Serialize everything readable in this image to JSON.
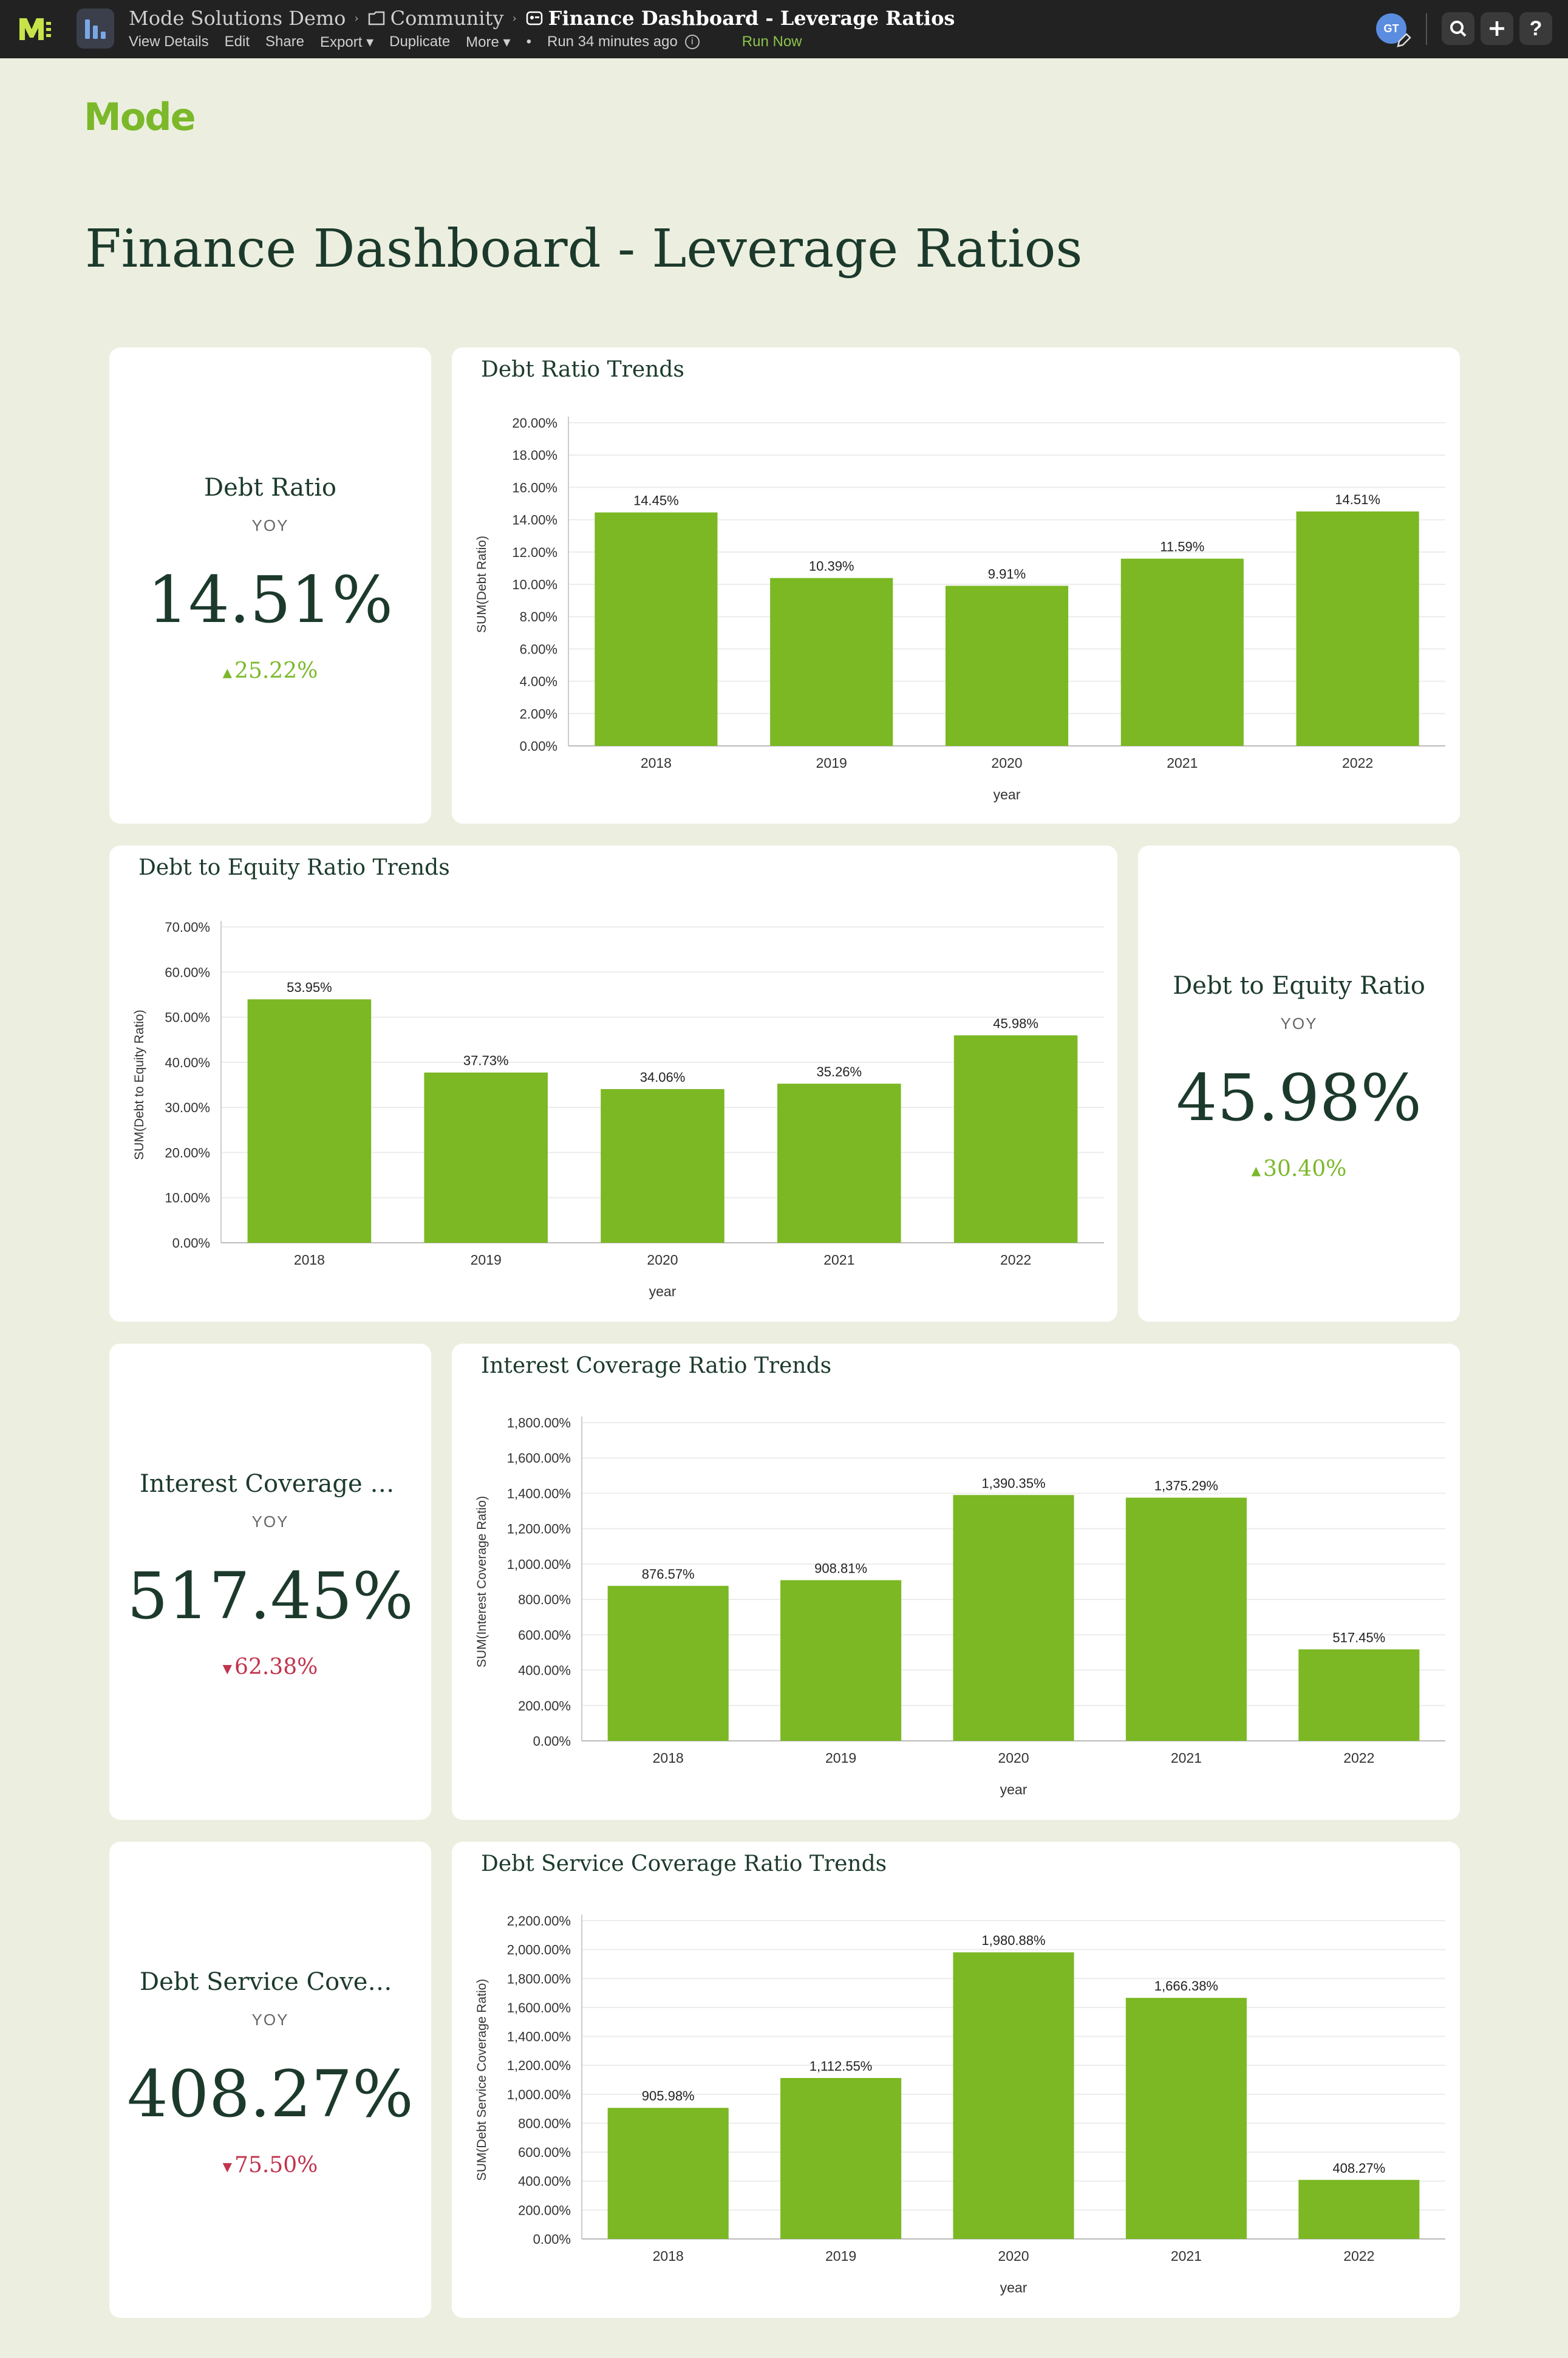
{
  "app": {
    "breadcrumbs": [
      "Mode Solutions Demo",
      "Community",
      "Finance Dashboard - Leverage Ratios"
    ],
    "actions": [
      "View Details",
      "Edit",
      "Share",
      "Export ▾",
      "Duplicate",
      "More ▾",
      "•",
      "Run 34 minutes ago"
    ],
    "run_now": "Run Now",
    "avatar_initials": "GT",
    "brand_logo": "Mode",
    "icons": [
      "mode-m-icon",
      "report-icon",
      "folder-icon",
      "report-small-icon",
      "info-icon",
      "search-icon",
      "plus-icon",
      "help-icon",
      "edit-pencil-icon"
    ]
  },
  "page": {
    "title": "Finance Dashboard - Leverage Ratios"
  },
  "kpis": [
    {
      "title": "Debt Ratio",
      "sub": "YOY",
      "value": "14.51%",
      "change": "25.22%",
      "direction": "up"
    },
    {
      "title": "Debt to Equity Ratio",
      "sub": "YOY",
      "value": "45.98%",
      "change": "30.40%",
      "direction": "up"
    },
    {
      "title": "Interest Coverage Ra...",
      "sub": "YOY",
      "value": "517.45%",
      "change": "62.38%",
      "direction": "down"
    },
    {
      "title": "Debt Service Covera...",
      "sub": "YOY",
      "value": "408.27%",
      "change": "75.50%",
      "direction": "down"
    }
  ],
  "colors": {
    "bar": "#7bb823",
    "up": "#7bb82a",
    "down": "#c0344d",
    "background": "#ecefdf"
  },
  "chart_data": [
    {
      "type": "bar",
      "title": "Debt Ratio Trends",
      "xlabel": "year",
      "ylabel": "SUM(Debt Ratio)",
      "categories": [
        "2018",
        "2019",
        "2020",
        "2021",
        "2022"
      ],
      "values": [
        14.45,
        10.39,
        9.91,
        11.59,
        14.51
      ],
      "labels": [
        "14.45%",
        "10.39%",
        "9.91%",
        "11.59%",
        "14.51%"
      ],
      "ylim": [
        0,
        20
      ],
      "ticks": [
        "0.00%",
        "2.00%",
        "4.00%",
        "6.00%",
        "8.00%",
        "10.00%",
        "12.00%",
        "14.00%",
        "16.00%",
        "18.00%",
        "20.00%"
      ],
      "grid": true
    },
    {
      "type": "bar",
      "title": "Debt to Equity Ratio Trends",
      "xlabel": "year",
      "ylabel": "SUM(Debt to Equity Ratio)",
      "categories": [
        "2018",
        "2019",
        "2020",
        "2021",
        "2022"
      ],
      "values": [
        53.95,
        37.73,
        34.06,
        35.26,
        45.98
      ],
      "labels": [
        "53.95%",
        "37.73%",
        "34.06%",
        "35.26%",
        "45.98%"
      ],
      "ylim": [
        0,
        70
      ],
      "ticks": [
        "0.00%",
        "10.00%",
        "20.00%",
        "30.00%",
        "40.00%",
        "50.00%",
        "60.00%",
        "70.00%"
      ],
      "grid": true
    },
    {
      "type": "bar",
      "title": "Interest Coverage Ratio Trends",
      "xlabel": "year",
      "ylabel": "SUM(Interest Coverage Ratio)",
      "categories": [
        "2018",
        "2019",
        "2020",
        "2021",
        "2022"
      ],
      "values": [
        876.57,
        908.81,
        1390.35,
        1375.29,
        517.45
      ],
      "labels": [
        "876.57%",
        "908.81%",
        "1,390.35%",
        "1,375.29%",
        "517.45%"
      ],
      "ylim": [
        0,
        1800
      ],
      "ticks": [
        "0.00%",
        "200.00%",
        "400.00%",
        "600.00%",
        "800.00%",
        "1,000.00%",
        "1,200.00%",
        "1,400.00%",
        "1,600.00%",
        "1,800.00%"
      ],
      "grid": true
    },
    {
      "type": "bar",
      "title": "Debt Service Coverage Ratio Trends",
      "xlabel": "year",
      "ylabel": "SUM(Debt Service Coverage Ratio)",
      "categories": [
        "2018",
        "2019",
        "2020",
        "2021",
        "2022"
      ],
      "values": [
        905.98,
        1112.55,
        1980.88,
        1666.38,
        408.27
      ],
      "labels": [
        "905.98%",
        "1,112.55%",
        "1,980.88%",
        "1,666.38%",
        "408.27%"
      ],
      "ylim": [
        0,
        2200
      ],
      "ticks": [
        "0.00%",
        "200.00%",
        "400.00%",
        "600.00%",
        "800.00%",
        "1,000.00%",
        "1,200.00%",
        "1,400.00%",
        "1,600.00%",
        "1,800.00%",
        "2,000.00%",
        "2,200.00%"
      ],
      "grid": true
    }
  ]
}
